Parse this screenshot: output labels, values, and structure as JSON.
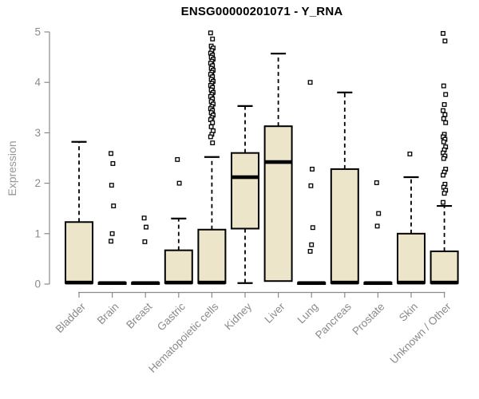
{
  "chart_data": {
    "type": "boxplot",
    "title": "ENSG00000201071 - Y_RNA",
    "ylabel": "Expression",
    "xlabel": "",
    "ylim": [
      0,
      5
    ],
    "yticks": [
      0,
      1,
      2,
      3,
      4,
      5
    ],
    "grid": false,
    "legend": "none",
    "colors": {
      "box_fill": "#ECE5C9",
      "box_stroke": "#000000",
      "median": "#000000",
      "whisker": "#000000",
      "outlier_fill": "#FFFFFF",
      "outlier_stroke": "#000000",
      "axis": "#8A8A8A",
      "tick_label": "#8A8A8A",
      "title": "#000000",
      "background": "#FFFFFF"
    },
    "categories": [
      "Bladder",
      "Brain",
      "Breast",
      "Gastric",
      "Hematopoietic cells",
      "Kidney",
      "Liver",
      "Lung",
      "Pancreas",
      "Prostate",
      "Skin",
      "Unknown / Other"
    ],
    "boxes": [
      {
        "category": "Bladder",
        "whisker_low": 0.02,
        "q1": 0.02,
        "median": 0.03,
        "q3": 1.23,
        "whisker_high": 2.82,
        "outliers": []
      },
      {
        "category": "Brain",
        "whisker_low": 0.0,
        "q1": 0.0,
        "median": 0.02,
        "q3": 0.03,
        "whisker_high": 0.03,
        "outliers": [
          2.59,
          2.39,
          1.96,
          1.55,
          1.0,
          0.85
        ]
      },
      {
        "category": "Breast",
        "whisker_low": 0.0,
        "q1": 0.0,
        "median": 0.02,
        "q3": 0.03,
        "whisker_high": 0.03,
        "outliers": [
          1.31,
          1.13,
          0.84
        ]
      },
      {
        "category": "Gastric",
        "whisker_low": 0.02,
        "q1": 0.02,
        "median": 0.03,
        "q3": 0.67,
        "whisker_high": 1.3,
        "outliers": [
          2.47,
          2.0
        ]
      },
      {
        "category": "Hematopoietic cells",
        "whisker_low": 0.02,
        "q1": 0.02,
        "median": 0.03,
        "q3": 1.08,
        "whisker_high": 2.52,
        "outliers": [
          4.98,
          4.86,
          4.72,
          4.68,
          4.63,
          4.58,
          4.54,
          4.5,
          4.46,
          4.42,
          4.38,
          4.33,
          4.28,
          4.24,
          4.2,
          4.16,
          4.11,
          4.06,
          4.02,
          3.98,
          3.94,
          3.9,
          3.85,
          3.8,
          3.76,
          3.72,
          3.67,
          3.62,
          3.57,
          3.52,
          3.48,
          3.44,
          3.4,
          3.35,
          3.3,
          3.26,
          3.2,
          3.12,
          3.04,
          2.97,
          2.92,
          2.8
        ]
      },
      {
        "category": "Kidney",
        "whisker_low": 0.02,
        "q1": 1.1,
        "median": 2.12,
        "q3": 2.6,
        "whisker_high": 3.53,
        "outliers": []
      },
      {
        "category": "Liver",
        "whisker_low": 0.02,
        "q1": 0.06,
        "median": 2.42,
        "q3": 3.13,
        "whisker_high": 4.57,
        "outliers": []
      },
      {
        "category": "Lung",
        "whisker_low": 0.0,
        "q1": 0.0,
        "median": 0.02,
        "q3": 0.03,
        "whisker_high": 0.03,
        "outliers": [
          4.0,
          2.28,
          1.95,
          1.12,
          0.78,
          0.65
        ]
      },
      {
        "category": "Pancreas",
        "whisker_low": 0.02,
        "q1": 0.02,
        "median": 0.03,
        "q3": 2.28,
        "whisker_high": 3.8,
        "outliers": []
      },
      {
        "category": "Prostate",
        "whisker_low": 0.0,
        "q1": 0.0,
        "median": 0.02,
        "q3": 0.03,
        "whisker_high": 0.03,
        "outliers": [
          2.01,
          1.4,
          1.15
        ]
      },
      {
        "category": "Skin",
        "whisker_low": 0.02,
        "q1": 0.02,
        "median": 0.03,
        "q3": 1.0,
        "whisker_high": 2.12,
        "outliers": [
          2.58
        ]
      },
      {
        "category": "Unknown / Other",
        "whisker_low": 0.02,
        "q1": 0.02,
        "median": 0.03,
        "q3": 0.65,
        "whisker_high": 1.55,
        "outliers": [
          4.97,
          4.82,
          3.93,
          3.76,
          3.56,
          3.44,
          3.36,
          3.28,
          3.2,
          2.97,
          2.92,
          2.87,
          2.82,
          2.72,
          2.66,
          2.6,
          2.54,
          2.49,
          2.28,
          2.22,
          2.16,
          1.98,
          1.92,
          1.86,
          1.8,
          1.62
        ]
      }
    ]
  }
}
